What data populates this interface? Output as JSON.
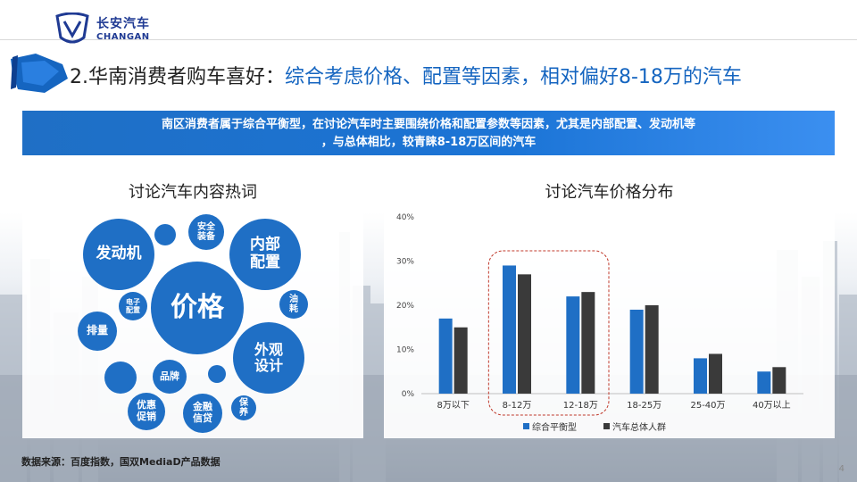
{
  "brand": {
    "name_cn": "长安汽车",
    "name_en": "CHANGAN"
  },
  "title": {
    "prefix": "2.华南消费者购车喜好：",
    "highlight": "综合考虑价格、配置等因素，相对偏好8-18万的汽车"
  },
  "summary": {
    "line1": "南区消费者属于综合平衡型，在讨论汽车时主要围绕价格和配置参数等因素，尤其是内部配置、发动机等",
    "line2": "，与总体相比，较青睐8-18万区间的汽车"
  },
  "wordcloud": {
    "title": "讨论汽车内容热词",
    "words": {
      "jiage": "价格",
      "fadongji": "发动机",
      "neibu": "内部\n配置",
      "anquan": "安全\n装备",
      "waiguan": "外观\n设计",
      "youhao": "油\n耗",
      "dianzi": "电子\n配置",
      "pailiang": "排量",
      "pinpai": "品牌",
      "youhui": "优惠\n促销",
      "jinrong": "金融\n信贷",
      "baoyang": "保\n养"
    }
  },
  "chart_data": {
    "type": "bar",
    "title": "讨论汽车价格分布",
    "categories": [
      "8万以下",
      "8-12万",
      "12-18万",
      "18-25万",
      "25-40万",
      "40万以上"
    ],
    "series": [
      {
        "name": "综合平衡型",
        "values": [
          17,
          29,
          22,
          19,
          8,
          5
        ],
        "color": "#1f6fc5"
      },
      {
        "name": "汽车总体人群",
        "values": [
          15,
          27,
          23,
          20,
          9,
          6
        ],
        "color": "#3a3a3a"
      }
    ],
    "ylim": [
      0,
      40
    ],
    "yticks": [
      "0%",
      "10%",
      "20%",
      "30%",
      "40%"
    ],
    "legend": "bottom",
    "grid": false
  },
  "footer": {
    "source": "数据来源：百度指数，国双MediaD产品数据"
  },
  "page": "4"
}
